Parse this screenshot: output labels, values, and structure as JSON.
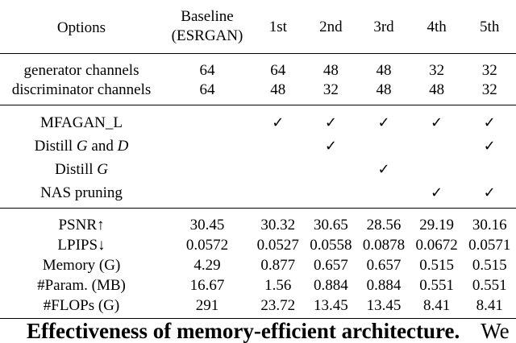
{
  "table": {
    "header": {
      "options": "Options",
      "baseline_line1": "Baseline",
      "baseline_line2": "(ESRGAN)",
      "configs": [
        "1st",
        "2nd",
        "3rd",
        "4th",
        "5th"
      ]
    },
    "channel_rows": [
      {
        "label": "generator channels",
        "values": [
          "64",
          "64",
          "48",
          "48",
          "32",
          "32"
        ]
      },
      {
        "label": "discriminator channels",
        "values": [
          "64",
          "48",
          "32",
          "48",
          "48",
          "32"
        ]
      }
    ],
    "technique_rows": [
      {
        "label": "MFAGAN_L",
        "checks": [
          false,
          true,
          true,
          true,
          true,
          true
        ]
      },
      {
        "label_parts": [
          "Distill ",
          "G",
          " and ",
          "D"
        ],
        "checks": [
          false,
          false,
          true,
          false,
          false,
          true
        ]
      },
      {
        "label_parts": [
          "Distill ",
          "G"
        ],
        "checks": [
          false,
          false,
          false,
          true,
          false,
          false
        ]
      },
      {
        "label": "NAS pruning",
        "checks": [
          false,
          false,
          false,
          false,
          true,
          true
        ]
      }
    ],
    "check_symbol": "✓",
    "metric_rows": [
      {
        "label": "PSNR↑",
        "values": [
          "30.45",
          "30.32",
          "30.65",
          "28.56",
          "29.19",
          "30.16"
        ]
      },
      {
        "label": "LPIPS↓",
        "values": [
          "0.0572",
          "0.0527",
          "0.0558",
          "0.0878",
          "0.0672",
          "0.0571"
        ]
      },
      {
        "label": "Memory (G)",
        "values": [
          "4.29",
          "0.877",
          "0.657",
          "0.657",
          "0.515",
          "0.515"
        ]
      },
      {
        "label": "#Param. (MB)",
        "values": [
          "16.67",
          "1.56",
          "0.884",
          "0.884",
          "0.551",
          "0.551"
        ]
      },
      {
        "label": "#FLOPs (G)",
        "values": [
          "291",
          "23.72",
          "13.45",
          "13.45",
          "8.41",
          "8.41"
        ]
      }
    ]
  },
  "caption": {
    "bold_text": "Effectiveness of memory-efficient architecture.",
    "tail_text": "We"
  }
}
